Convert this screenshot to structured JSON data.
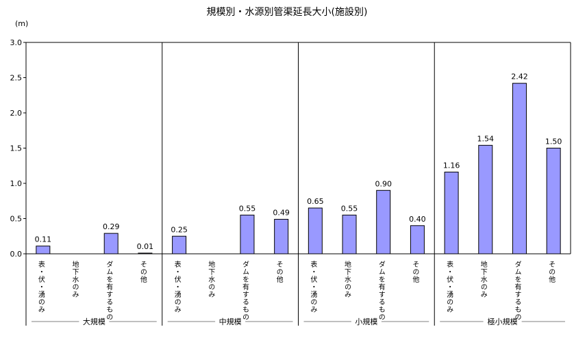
{
  "chart_data": {
    "type": "bar",
    "title": "規模別・水源別管渠延長大小(施設別)",
    "ylabel": "(m)",
    "ylim": [
      0,
      3.0
    ],
    "yticks": [
      "0.0",
      "0.5",
      "1.0",
      "1.5",
      "2.0",
      "2.5",
      "3.0"
    ],
    "bar_color": "#9999ff",
    "groups": [
      {
        "name": "大規模",
        "categories": [
          "表・伏・湧のみ",
          "地下水のみ",
          "ダムを有するもの",
          "その他"
        ],
        "values": [
          0.11,
          null,
          0.29,
          0.01
        ],
        "labels": [
          "0.11",
          "",
          "0.29",
          "0.01"
        ]
      },
      {
        "name": "中規模",
        "categories": [
          "表・伏・湧のみ",
          "地下水のみ",
          "ダムを有するもの",
          "その他"
        ],
        "values": [
          0.25,
          null,
          0.55,
          0.49
        ],
        "labels": [
          "0.25",
          "",
          "0.55",
          "0.49"
        ]
      },
      {
        "name": "小規模",
        "categories": [
          "表・伏・湧のみ",
          "地下水のみ",
          "ダムを有するもの",
          "その他"
        ],
        "values": [
          0.65,
          0.55,
          0.9,
          0.4
        ],
        "labels": [
          "0.65",
          "0.55",
          "0.90",
          "0.40"
        ]
      },
      {
        "name": "極小規模",
        "categories": [
          "表・伏・湧のみ",
          "地下水のみ",
          "ダムを有するもの",
          "その他"
        ],
        "values": [
          1.16,
          1.54,
          2.42,
          1.5
        ],
        "labels": [
          "1.16",
          "1.54",
          "2.42",
          "1.50"
        ]
      }
    ]
  }
}
